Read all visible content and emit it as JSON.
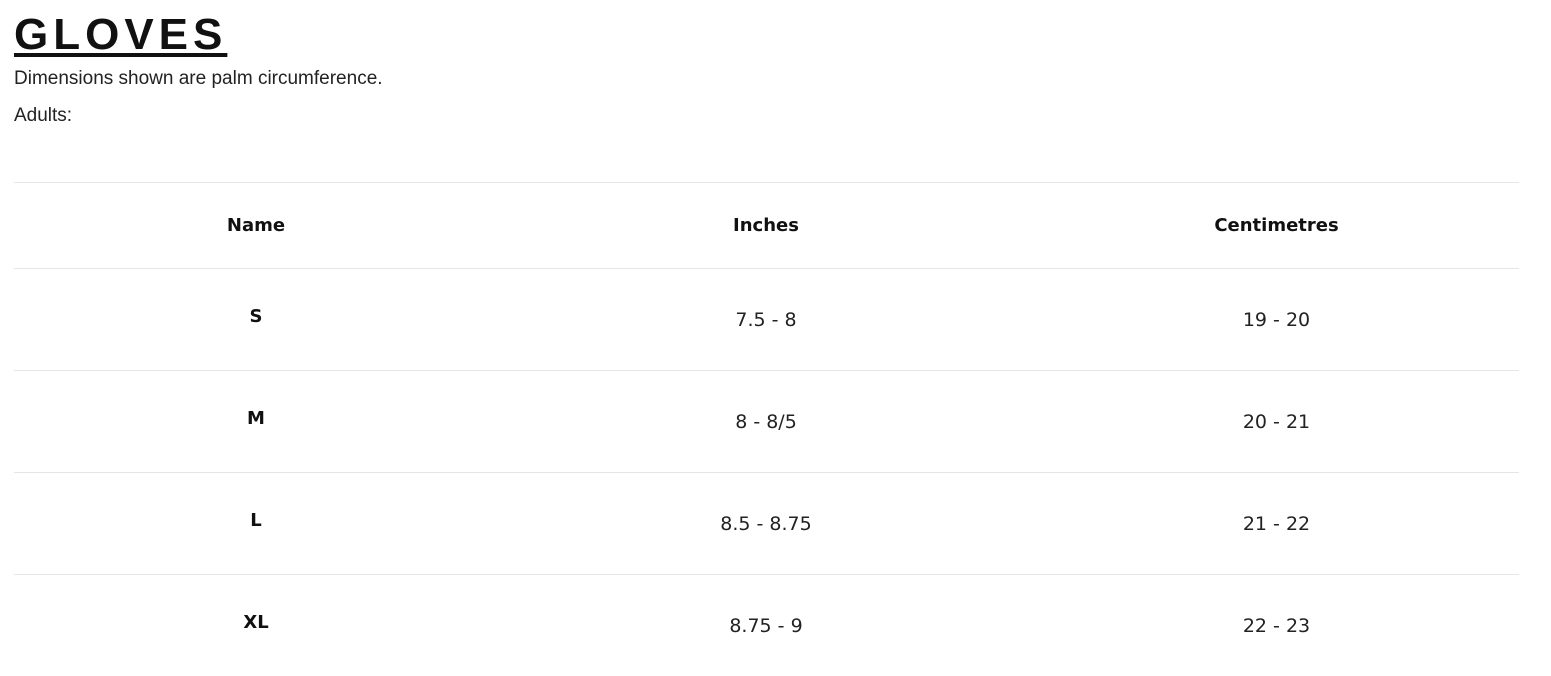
{
  "title": "GLOVES",
  "description": "Dimensions shown are palm circumference.",
  "group_label": "Adults:",
  "table": {
    "headers": [
      "Name",
      "Inches",
      "Centimetres"
    ],
    "rows": [
      [
        "S",
        "7.5 - 8",
        "19 - 20"
      ],
      [
        "M",
        "8 - 8/5",
        "20 - 21"
      ],
      [
        "L",
        "8.5 - 8.75",
        "21 - 22"
      ],
      [
        "XL",
        "8.75 - 9",
        "22 - 23"
      ]
    ]
  }
}
